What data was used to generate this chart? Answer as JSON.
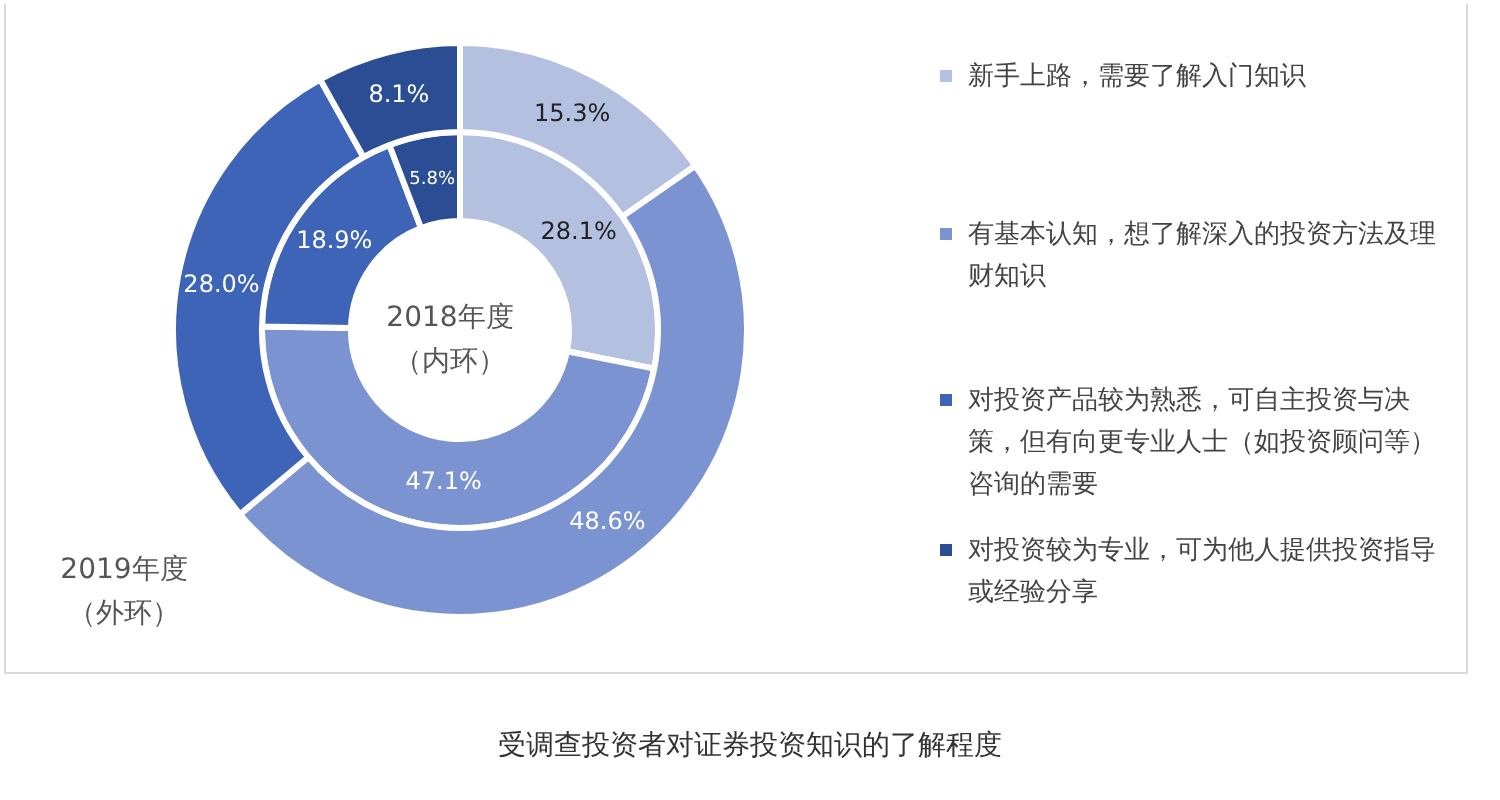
{
  "chart_data": {
    "type": "donut",
    "categories": [
      "新手上路，需要了解入门知识",
      "有基本认知，想了解深入的投资方法及理财知识",
      "对投资产品较为熟悉，可自主投资与决策，但有向更专业人士（如投资顾问等）咨询的需要",
      "对投资较为专业，可为他人提供投资指导或经验分享"
    ],
    "colors": [
      "#b4c0e0",
      "#7b93d0",
      "#3e64b8",
      "#2a4d94"
    ],
    "series": [
      {
        "values": [
          15.3,
          48.6,
          28.0,
          8.1
        ],
        "value_labels": [
          "15.3%",
          "48.6%",
          "28.0%",
          "8.1%"
        ]
      },
      {
        "values": [
          28.1,
          47.1,
          18.9,
          5.8
        ],
        "value_labels": [
          "28.1%",
          "47.1%",
          "18.9%",
          "5.8%"
        ]
      }
    ],
    "legend": "right",
    "annotations": [
      "2018年度（内环）",
      "2019年度（外环）",
      "受调查投资者对证券投资知识的了解程度"
    ]
  }
}
